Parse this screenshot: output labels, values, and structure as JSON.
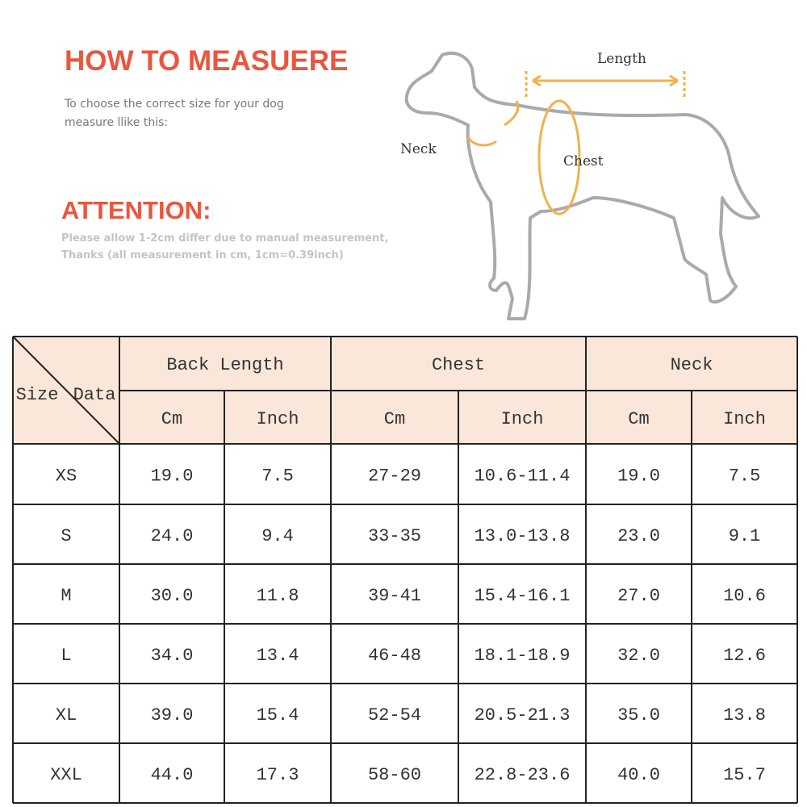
{
  "header": {
    "title": "HOW TO MEASUERE",
    "subtitle_lines": [
      "To choose the correct size for your dog",
      "measure llike this:"
    ]
  },
  "attention": {
    "title": "ATTENTION:",
    "lines": [
      "Please allow 1-2cm differ due to manual measurement,",
      "Thanks (all measurement in cm, 1cm=0.39inch)"
    ]
  },
  "diagram": {
    "labels": {
      "length": "Length",
      "neck": "Neck",
      "chest": "Chest"
    }
  },
  "table": {
    "corner": {
      "size": "Size",
      "data": "Data"
    },
    "groups": [
      "Back Length",
      "Chest",
      "Neck"
    ],
    "units": [
      "Cm",
      "Inch",
      "Cm",
      "Inch",
      "Cm",
      "Inch"
    ],
    "rows": [
      [
        "XS",
        "19.0",
        "7.5",
        "27-29",
        "10.6-11.4",
        "19.0",
        "7.5"
      ],
      [
        "S",
        "24.0",
        "9.4",
        "33-35",
        "13.0-13.8",
        "23.0",
        "9.1"
      ],
      [
        "M",
        "30.0",
        "11.8",
        "39-41",
        "15.4-16.1",
        "27.0",
        "10.6"
      ],
      [
        "L",
        "34.0",
        "13.4",
        "46-48",
        "18.1-18.9",
        "32.0",
        "12.6"
      ],
      [
        "XL",
        "39.0",
        "15.4",
        "52-54",
        "20.5-21.3",
        "35.0",
        "13.8"
      ],
      [
        "XXL",
        "44.0",
        "17.3",
        "58-60",
        "22.8-23.6",
        "40.0",
        "15.7"
      ]
    ]
  }
}
